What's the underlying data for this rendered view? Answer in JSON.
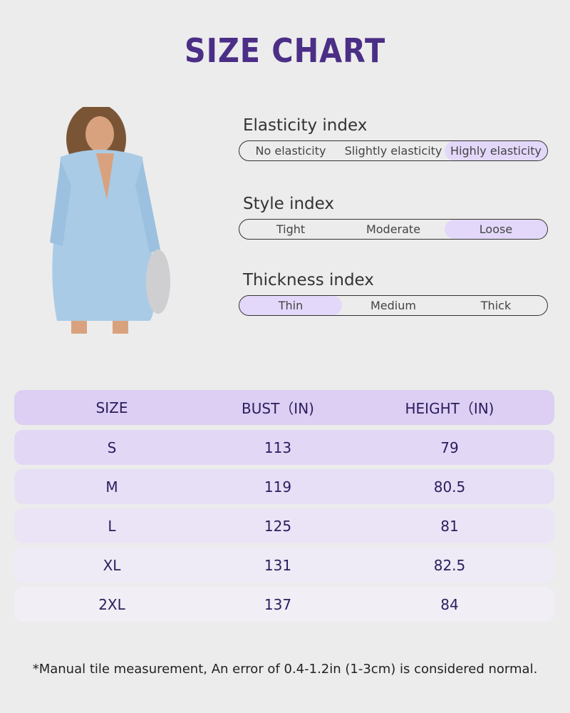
{
  "title": "SIZE CHART",
  "indices": [
    {
      "label": "Elasticity index",
      "options": [
        "No elasticity",
        "Slightly elasticity",
        "Highly elasticity"
      ],
      "selected": 2
    },
    {
      "label": "Style index",
      "options": [
        "Tight",
        "Moderate",
        "Loose"
      ],
      "selected": 2
    },
    {
      "label": "Thickness index",
      "options": [
        "Thin",
        "Medium",
        "Thick"
      ],
      "selected": 0
    }
  ],
  "table": {
    "headers": [
      "SIZE",
      "BUST（IN)",
      "HEIGHT（IN)"
    ],
    "rows": [
      [
        "S",
        "113",
        "79"
      ],
      [
        "M",
        "119",
        "80.5"
      ],
      [
        "L",
        "125",
        "81"
      ],
      [
        "XL",
        "131",
        "82.5"
      ],
      [
        "2XL",
        "137",
        "84"
      ]
    ]
  },
  "note": "*Manual tile measurement, An error of 0.4-1.2in (1-3cm) is considered normal.",
  "colors": {
    "title": "#4b2e86",
    "highlight": "#e3d8fa",
    "header": "#dccff3"
  }
}
